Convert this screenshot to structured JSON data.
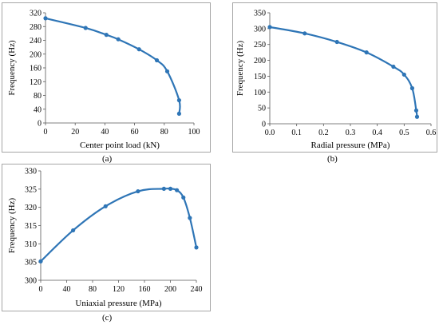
{
  "chart_data": [
    {
      "type": "line",
      "panel_label": "(a)",
      "xlabel": "Center point load (kN)",
      "ylabel": "Frequency (Hz)",
      "xlim": [
        0,
        100
      ],
      "ylim": [
        0,
        320
      ],
      "xticks": [
        0,
        20,
        40,
        60,
        80,
        100
      ],
      "yticks": [
        0,
        40,
        80,
        120,
        160,
        200,
        240,
        280,
        320
      ],
      "series": [
        {
          "x": [
            0,
            27,
            41,
            49,
            63,
            75,
            82,
            90,
            90
          ],
          "y": [
            304,
            276,
            256,
            243,
            214,
            182,
            150,
            66,
            27
          ]
        }
      ],
      "grid": false,
      "color": "#2e75b6"
    },
    {
      "type": "line",
      "panel_label": "(b)",
      "xlabel": "Radial pressure (MPa)",
      "ylabel": "Frequency (Hz)",
      "xlim": [
        0,
        0.6
      ],
      "ylim": [
        0,
        350
      ],
      "xticks": [
        0,
        0.1,
        0.2,
        0.3,
        0.4,
        0.5,
        0.6
      ],
      "yticks": [
        0,
        50,
        100,
        150,
        200,
        250,
        300,
        350
      ],
      "series": [
        {
          "x": [
            0,
            0.13,
            0.25,
            0.36,
            0.46,
            0.5,
            0.53,
            0.545,
            0.548
          ],
          "y": [
            305,
            285,
            258,
            225,
            180,
            155,
            112,
            42,
            22
          ]
        }
      ],
      "grid": false,
      "color": "#2e75b6"
    },
    {
      "type": "line",
      "panel_label": "(c)",
      "xlabel": "Uniaxial pressure (MPa)",
      "ylabel": "Frequency (Hz)",
      "xlim": [
        0,
        240
      ],
      "ylim": [
        300,
        330
      ],
      "xticks": [
        0,
        40,
        80,
        120,
        160,
        200,
        240
      ],
      "yticks": [
        300,
        305,
        310,
        315,
        320,
        325,
        330
      ],
      "series": [
        {
          "x": [
            0,
            50,
            100,
            150,
            190,
            200,
            210,
            220,
            230,
            240
          ],
          "y": [
            305.2,
            313.7,
            320.3,
            324.4,
            325.1,
            325.1,
            324.7,
            322.7,
            317.1,
            309
          ]
        }
      ],
      "grid": false,
      "color": "#2e75b6"
    }
  ]
}
